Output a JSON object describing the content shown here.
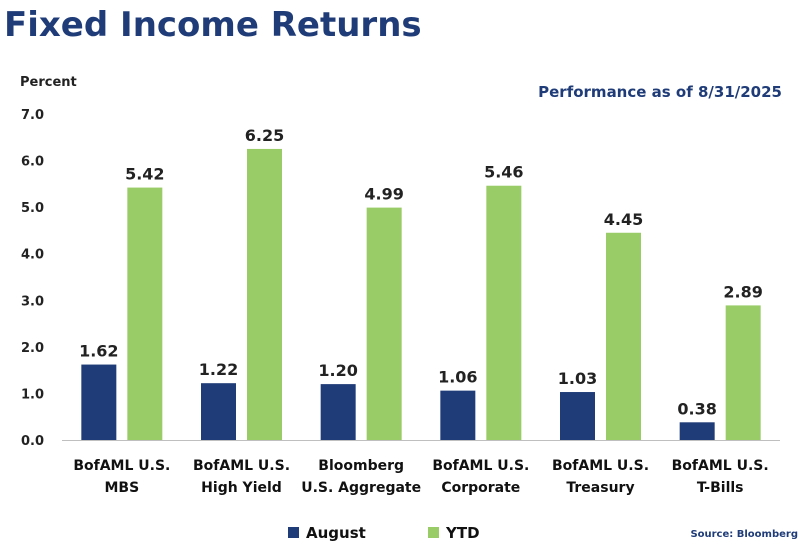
{
  "chart_data": {
    "type": "bar",
    "title": "Fixed Income Returns",
    "subtitle": "Performance as of 8/31/2025",
    "ylabel": "Percent",
    "ylim": [
      0,
      7
    ],
    "yticks": [
      "0.0",
      "1.0",
      "2.0",
      "3.0",
      "4.0",
      "5.0",
      "6.0",
      "7.0"
    ],
    "grid": false,
    "legend_position": "bottom",
    "source": "Source: Bloomberg",
    "categories": [
      [
        "BofAML U.S.",
        "MBS"
      ],
      [
        "BofAML U.S.",
        "High Yield"
      ],
      [
        "Bloomberg",
        "U.S. Aggregate"
      ],
      [
        "BofAML U.S.",
        "Corporate"
      ],
      [
        "BofAML U.S.",
        "Treasury"
      ],
      [
        "BofAML U.S.",
        "T-Bills"
      ]
    ],
    "series": [
      {
        "name": "August",
        "color": "#1f3c78",
        "values": [
          1.62,
          1.22,
          1.2,
          1.06,
          1.03,
          0.38
        ],
        "labels": [
          "1.62",
          "1.22",
          "1.20",
          "1.06",
          "1.03",
          "0.38"
        ]
      },
      {
        "name": "YTD",
        "color": "#99cc66",
        "values": [
          5.42,
          6.25,
          4.99,
          5.46,
          4.45,
          2.89
        ],
        "labels": [
          "5.42",
          "6.25",
          "4.99",
          "5.46",
          "4.45",
          "2.89"
        ]
      }
    ]
  }
}
